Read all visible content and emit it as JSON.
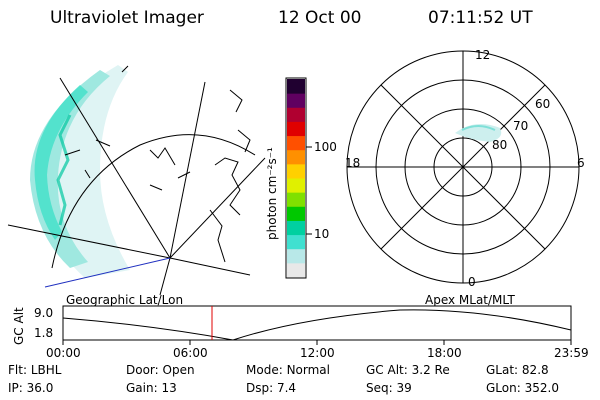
{
  "header": {
    "instrument": "Ultraviolet Imager",
    "date": "12 Oct 00",
    "time": "07:11:52 UT"
  },
  "colorbar": {
    "unit_label": "photon cm⁻²s⁻¹",
    "ticks": [
      "100",
      "10"
    ],
    "colors": [
      "#e8e8e8",
      "#b8e8e8",
      "#40e0d0",
      "#00d0a0",
      "#00c800",
      "#80e000",
      "#e0f000",
      "#ffd000",
      "#ff9000",
      "#ff5000",
      "#e00000",
      "#b00030",
      "#600060",
      "#200030"
    ]
  },
  "polar_plot": {
    "labels": {
      "top": "12",
      "left": "18",
      "right": "6",
      "bottom": "0"
    },
    "lat_labels": [
      "60",
      "70",
      "80"
    ]
  },
  "timeline": {
    "left_title": "Geographic Lat/Lon",
    "right_title": "Apex MLat/MLT",
    "axis_label": "GC Alt",
    "y_ticks": [
      "9.0",
      "1.8"
    ],
    "x_ticks": [
      "00:00",
      "06:00",
      "12:00",
      "18:00",
      "23:59"
    ]
  },
  "info": {
    "row1": [
      {
        "label": "Flt:",
        "value": "LBHL"
      },
      {
        "label": "Door:",
        "value": "Open"
      },
      {
        "label": "Mode:",
        "value": "Normal"
      },
      {
        "label": "GC Alt:",
        "value": "3.2 Re"
      },
      {
        "label": "GLat:",
        "value": "82.8"
      }
    ],
    "row2": [
      {
        "label": "IP:",
        "value": "36.0"
      },
      {
        "label": "Gain:",
        "value": "13"
      },
      {
        "label": "Dsp:",
        "value": "7.4"
      },
      {
        "label": "Seq:",
        "value": "39"
      },
      {
        "label": "GLon:",
        "value": "352.0"
      }
    ]
  }
}
